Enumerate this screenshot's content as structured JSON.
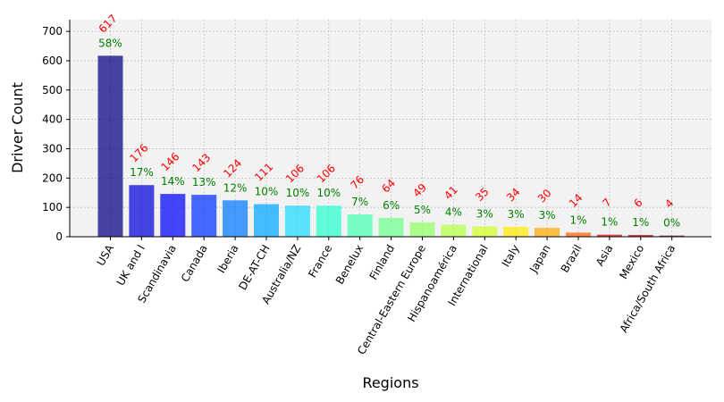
{
  "chart_data": {
    "type": "bar",
    "xlabel": "Regions",
    "ylabel": "Driver Count",
    "ylim": [
      0,
      740
    ],
    "yticks": [
      0,
      100,
      200,
      300,
      400,
      500,
      600,
      700
    ],
    "grid": true,
    "categories": [
      "USA",
      "UK and I",
      "Scandinavia",
      "Canada",
      "Iberia",
      "DE-AT-CH",
      "Australia/NZ",
      "France",
      "Benelux",
      "Finland",
      "Central-Eastern Europe",
      "Hispanoamérica",
      "International",
      "Italy",
      "Japan",
      "Brazil",
      "Asia",
      "Mexico",
      "Africa/South Africa"
    ],
    "values": [
      617,
      176,
      146,
      143,
      124,
      111,
      106,
      106,
      76,
      64,
      49,
      41,
      35,
      34,
      30,
      14,
      7,
      6,
      4
    ],
    "value_labels": [
      "617",
      "176",
      "146",
      "143",
      "124",
      "111",
      "106",
      "106",
      "76",
      "64",
      "49",
      "41",
      "35",
      "34",
      "30",
      "14",
      "7",
      "6",
      "4"
    ],
    "percent_labels": [
      "58%",
      "17%",
      "14%",
      "13%",
      "12%",
      "10%",
      "10%",
      "10%",
      "7%",
      "6%",
      "5%",
      "4%",
      "3%",
      "3%",
      "3%",
      "1%",
      "1%",
      "1%",
      "0%"
    ],
    "bar_colors": [
      "#00007f",
      "#0000dd",
      "#0000ff",
      "#0031ff",
      "#0079ff",
      "#00a5ff",
      "#1fd9ff",
      "#27ffcf",
      "#4affad",
      "#6dff8a",
      "#90ff66",
      "#b3ff43",
      "#cfff27",
      "#ffea00",
      "#ffa700",
      "#ff5f00",
      "#e80000",
      "#c40000",
      "#7f0000"
    ],
    "value_label_color": "#ff0000",
    "percent_label_color": "#008000",
    "plot_background": "#f2f2f2"
  }
}
